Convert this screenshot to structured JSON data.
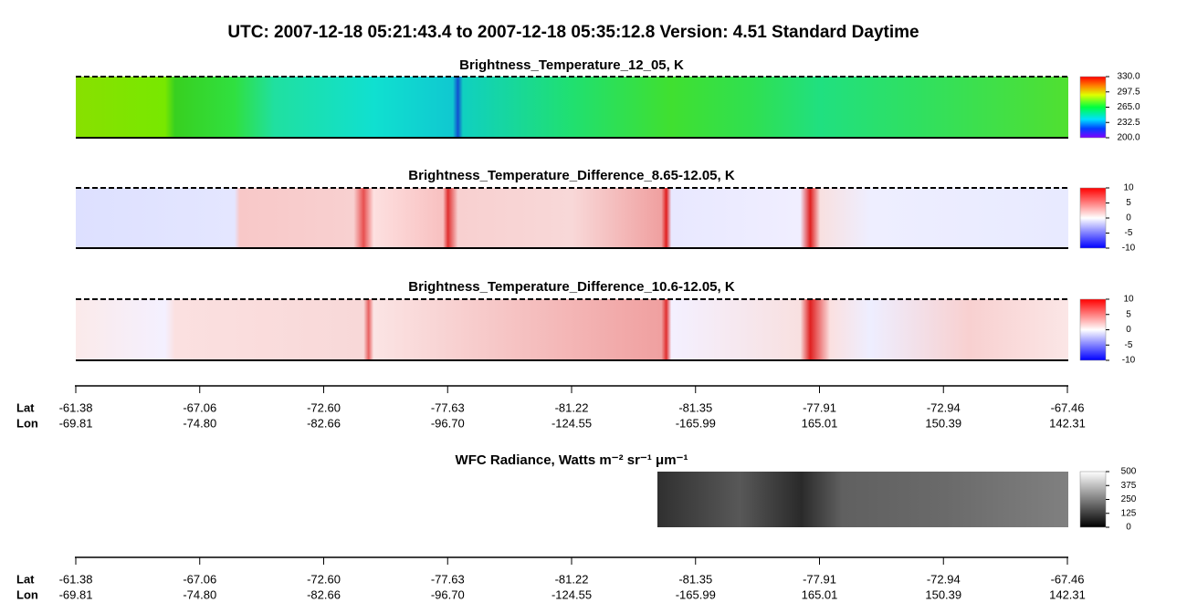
{
  "title": "UTC:  2007-12-18   05:21:43.4  to  2007-12-18   05:35:12.8    Version: 4.51  Standard Daytime",
  "chart_data": [
    {
      "type": "image",
      "title": "Brightness_Temperature_12_05, K",
      "colormap": "rainbow",
      "clim": [
        200,
        330
      ],
      "cticks": [
        {
          "value": 330,
          "label": "330.0"
        },
        {
          "value": 297.5,
          "label": "297.5"
        },
        {
          "value": 265,
          "label": "265.0"
        },
        {
          "value": 232.5,
          "label": "232.5"
        },
        {
          "value": 200,
          "label": "200.0"
        }
      ]
    },
    {
      "type": "image",
      "title": "Brightness_Temperature_Difference_8.65-12.05, K",
      "colormap": "diverging",
      "clim": [
        -10,
        10
      ],
      "cticks": [
        10,
        5,
        0,
        -5,
        -10
      ]
    },
    {
      "type": "image",
      "title": "Brightness_Temperature_Difference_10.6-12.05, K",
      "colormap": "diverging",
      "clim": [
        -10,
        10
      ],
      "cticks": [
        10,
        5,
        0,
        -5,
        -10
      ]
    },
    {
      "type": "image",
      "title": "WFC Radiance, Watts m⁻² sr⁻¹ μm⁻¹",
      "colormap": "gray",
      "clim": [
        0,
        500
      ],
      "cticks": [
        500,
        375,
        250,
        125,
        0
      ]
    }
  ],
  "geo_axis": {
    "row_labels": [
      "Lat",
      "Lon"
    ],
    "lat": [
      -61.38,
      -67.06,
      {
        "value": -72.6,
        "label": "-72.60"
      },
      -77.63,
      -81.22,
      -81.35,
      -77.91,
      -72.94,
      -67.46
    ],
    "lon": [
      -69.81,
      {
        "value": -74.8,
        "label": "-74.80"
      },
      -82.66,
      {
        "value": -96.7,
        "label": "-96.70"
      },
      -124.55,
      -165.99,
      165.01,
      150.39,
      142.31
    ]
  }
}
